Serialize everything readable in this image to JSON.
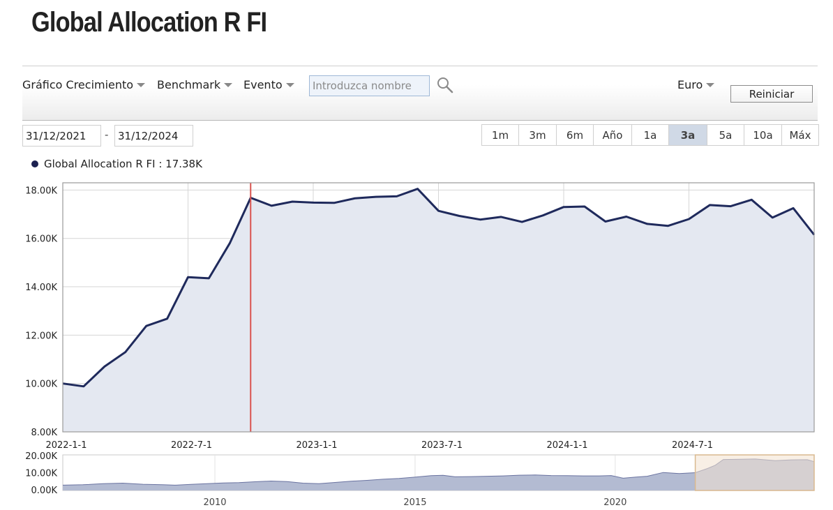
{
  "page": {
    "title": "Global Allocation R FI"
  },
  "toolbar": {
    "growth_chart_label": "Gráfico Crecimiento",
    "benchmark_label": "Benchmark",
    "event_label": "Evento",
    "search_placeholder": "Introduzca nombre",
    "currency_label": "Euro",
    "reset_label": "Reiniciar"
  },
  "date_range": {
    "start": "31/12/2021",
    "separator": "-",
    "end": "31/12/2024"
  },
  "periods": [
    {
      "label": "1m",
      "active": false
    },
    {
      "label": "3m",
      "active": false
    },
    {
      "label": "6m",
      "active": false
    },
    {
      "label": "Año",
      "active": false
    },
    {
      "label": "1a",
      "active": false
    },
    {
      "label": "3a",
      "active": true
    },
    {
      "label": "5a",
      "active": false
    },
    {
      "label": "10a",
      "active": false
    },
    {
      "label": "Máx",
      "active": false
    }
  ],
  "legend": {
    "label": "Global Allocation R FI : 17.38K"
  },
  "colors": {
    "line": "#1f2a5c",
    "area": "#e4e8f1",
    "marker": "#d9534f",
    "nav_fill": "#b3bbd2",
    "nav_selection": "#f2e2cf"
  },
  "chart_data": [
    {
      "type": "area",
      "y_axis_labels": [
        "8.00K",
        "10.00K",
        "12.00K",
        "14.00K",
        "16.00K",
        "18.00K"
      ],
      "yticks": [
        8000,
        10000,
        12000,
        14000,
        16000,
        18000
      ],
      "ylim": [
        8000,
        18300
      ],
      "x_axis_labels": [
        "2022-1-1",
        "2022-7-1",
        "2023-1-1",
        "2023-7-1",
        "2024-1-1",
        "2024-7-1"
      ],
      "xticks": [
        0,
        6,
        12,
        18,
        24,
        30
      ],
      "xlim": [
        0,
        36
      ],
      "marker_x": 9,
      "grid": true,
      "series": [
        {
          "x": [
            0,
            1,
            2,
            3,
            4,
            5,
            6,
            7,
            8,
            9,
            10,
            11,
            12,
            13,
            14,
            15,
            16,
            17,
            18,
            19,
            20,
            21,
            22,
            23,
            24,
            25,
            26,
            27,
            28,
            29,
            30,
            31,
            32,
            33,
            34,
            35,
            36
          ],
          "values": [
            10000,
            9880,
            10700,
            11300,
            12380,
            12680,
            14400,
            14350,
            15800,
            17680,
            17350,
            17520,
            17480,
            17470,
            17660,
            17720,
            17740,
            18050,
            17140,
            16930,
            16780,
            16890,
            16680,
            16950,
            17300,
            17320,
            16700,
            16900,
            16600,
            16520,
            16800,
            17380,
            17330,
            17600,
            16860,
            17250,
            16150
          ]
        }
      ]
    },
    {
      "type": "area",
      "y_axis_labels": [
        "0.00K",
        "10.00K",
        "20.00K"
      ],
      "yticks": [
        0,
        10000,
        20000
      ],
      "ylim": [
        0,
        20000
      ],
      "x_axis_labels": [
        "2010",
        "2015",
        "2020"
      ],
      "xticks": [
        2010,
        2015,
        2020
      ],
      "xlim": [
        2006.2,
        2024.97
      ],
      "selection": [
        2022.0,
        2024.97
      ],
      "series": [
        {
          "x": [
            2006.2,
            2006.7,
            2007.2,
            2007.7,
            2008.2,
            2008.7,
            2009.0,
            2009.4,
            2009.8,
            2010.2,
            2010.6,
            2011.0,
            2011.4,
            2011.8,
            2012.2,
            2012.6,
            2013.0,
            2013.4,
            2013.8,
            2014.2,
            2014.6,
            2015.0,
            2015.4,
            2015.7,
            2016.0,
            2016.4,
            2016.8,
            2017.2,
            2017.6,
            2018.0,
            2018.4,
            2018.8,
            2019.2,
            2019.6,
            2019.9,
            2020.2,
            2020.5,
            2020.8,
            2021.2,
            2021.6,
            2022.0,
            2022.3,
            2022.5,
            2022.7,
            2023.0,
            2023.5,
            2024.0,
            2024.4,
            2024.8,
            2024.97
          ],
          "values": [
            3000,
            3200,
            3800,
            4100,
            3500,
            3200,
            3000,
            3400,
            3800,
            4200,
            4400,
            4900,
            5300,
            5000,
            4100,
            3800,
            4500,
            5200,
            5700,
            6300,
            6800,
            7500,
            8300,
            8500,
            7700,
            7800,
            8000,
            8200,
            8600,
            8700,
            8400,
            8300,
            8200,
            8200,
            8400,
            6900,
            7500,
            8000,
            10100,
            9500,
            10000,
            12300,
            14200,
            17400,
            17500,
            17700,
            16800,
            17200,
            17300,
            16200
          ]
        }
      ]
    }
  ]
}
